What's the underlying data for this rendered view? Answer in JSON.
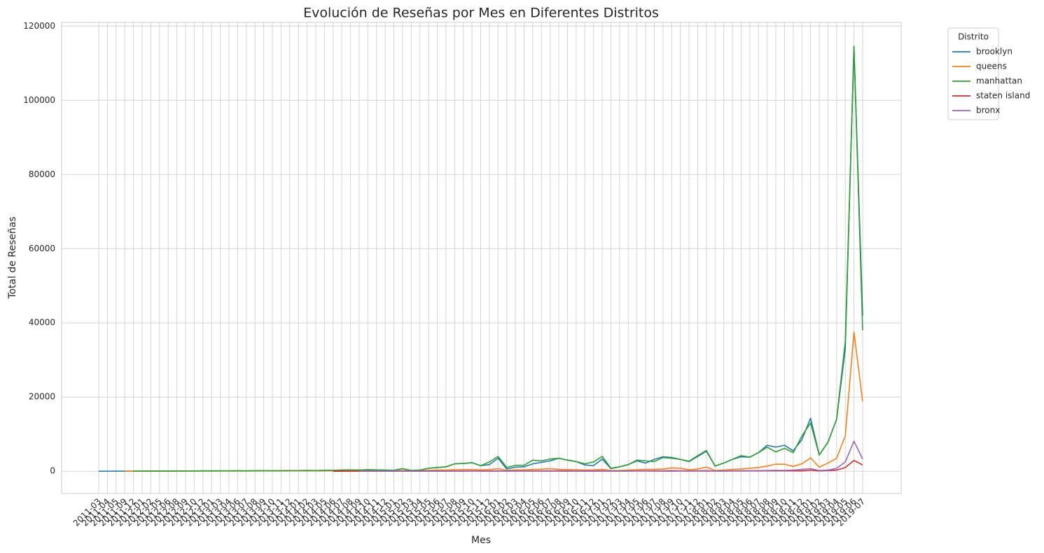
{
  "chart_data": {
    "type": "line",
    "title": "Evolución de Reseñas por Mes en Diferentes Distritos",
    "x_label": "Mes",
    "y_label": "Total de Reseñas",
    "legend_title": "Distrito",
    "legend_position": "outside upper right",
    "grid": true,
    "categories": [
      "2011-03",
      "2011-04",
      "2011-05",
      "2011-09",
      "2011-12",
      "2012-01",
      "2012-02",
      "2012-05",
      "2012-06",
      "2012-08",
      "2012-09",
      "2012-10",
      "2012-12",
      "2013-01",
      "2013-03",
      "2013-04",
      "2013-06",
      "2013-07",
      "2013-08",
      "2013-09",
      "2013-10",
      "2013-11",
      "2013-12",
      "2014-01",
      "2014-02",
      "2014-03",
      "2014-05",
      "2014-06",
      "2014-07",
      "2014-08",
      "2014-09",
      "2014-10",
      "2014-11",
      "2014-12",
      "2015-01",
      "2015-02",
      "2015-03",
      "2015-04",
      "2015-05",
      "2015-06",
      "2015-07",
      "2015-08",
      "2015-09",
      "2015-10",
      "2015-11",
      "2015-12",
      "2016-01",
      "2016-02",
      "2016-03",
      "2016-04",
      "2016-05",
      "2016-06",
      "2016-07",
      "2016-08",
      "2016-09",
      "2016-10",
      "2016-11",
      "2016-12",
      "2017-01",
      "2017-02",
      "2017-03",
      "2017-04",
      "2017-05",
      "2017-06",
      "2017-07",
      "2017-08",
      "2017-09",
      "2017-10",
      "2017-11",
      "2017-12",
      "2018-01",
      "2018-02",
      "2018-03",
      "2018-04",
      "2018-05",
      "2018-06",
      "2018-07",
      "2018-08",
      "2018-09",
      "2018-10",
      "2018-11",
      "2018-12",
      "2019-01",
      "2019-02",
      "2019-03",
      "2019-04",
      "2019-05",
      "2019-06",
      "2019-07"
    ],
    "ylim": [
      -6000,
      121000
    ],
    "yticks": [
      0,
      20000,
      40000,
      60000,
      80000,
      100000,
      120000
    ],
    "series": [
      {
        "name": "brooklyn",
        "color": "#1f77b4",
        "values": [
          10,
          15,
          20,
          20,
          30,
          40,
          50,
          60,
          60,
          70,
          80,
          80,
          90,
          100,
          90,
          110,
          120,
          100,
          130,
          140,
          120,
          150,
          160,
          180,
          200,
          170,
          220,
          250,
          300,
          350,
          300,
          400,
          350,
          300,
          250,
          700,
          200,
          300,
          800,
          1000,
          1200,
          2000,
          2100,
          2300,
          1500,
          1800,
          3500,
          600,
          1100,
          1200,
          2000,
          2400,
          2800,
          3500,
          3000,
          2600,
          1700,
          1500,
          3300,
          700,
          1200,
          1800,
          2800,
          2200,
          3200,
          3900,
          3700,
          3200,
          2600,
          4000,
          5400,
          1400,
          2200,
          3200,
          3900,
          3800,
          5000,
          7000,
          6500,
          7000,
          5500,
          8500,
          14300,
          4400,
          7800,
          14000,
          33000,
          114500,
          42000
        ]
      },
      {
        "name": "queens",
        "color": "#ff7f0e",
        "values": [
          null,
          null,
          null,
          20,
          20,
          30,
          30,
          40,
          40,
          50,
          50,
          60,
          60,
          60,
          70,
          70,
          80,
          80,
          90,
          90,
          100,
          100,
          110,
          110,
          120,
          120,
          130,
          140,
          150,
          160,
          150,
          170,
          180,
          160,
          150,
          200,
          150,
          180,
          250,
          300,
          300,
          400,
          450,
          450,
          350,
          450,
          700,
          250,
          350,
          350,
          500,
          550,
          700,
          500,
          450,
          400,
          300,
          350,
          500,
          200,
          200,
          300,
          400,
          500,
          500,
          600,
          900,
          800,
          400,
          600,
          1100,
          200,
          300,
          500,
          600,
          800,
          1000,
          1400,
          1900,
          1900,
          1300,
          2000,
          3600,
          1100,
          2200,
          3500,
          9500,
          37500,
          18800
        ]
      },
      {
        "name": "manhattan",
        "color": "#2ca02c",
        "values": [
          null,
          null,
          null,
          null,
          30,
          40,
          50,
          60,
          60,
          70,
          80,
          80,
          90,
          100,
          90,
          110,
          120,
          100,
          130,
          140,
          120,
          150,
          160,
          180,
          200,
          170,
          220,
          250,
          300,
          350,
          300,
          400,
          350,
          300,
          250,
          700,
          200,
          300,
          800,
          1000,
          1200,
          2000,
          2100,
          2300,
          1500,
          2500,
          4000,
          1000,
          1600,
          1600,
          3000,
          2800,
          3300,
          3500,
          3000,
          2600,
          2000,
          2500,
          4000,
          800,
          1200,
          1800,
          3000,
          2800,
          2600,
          3700,
          3500,
          3200,
          2700,
          4200,
          5600,
          1400,
          2200,
          3200,
          4200,
          3800,
          5000,
          6500,
          5200,
          6200,
          5000,
          9500,
          13000,
          4400,
          7800,
          14000,
          35000,
          114500,
          38000
        ]
      },
      {
        "name": "staten island",
        "color": "#d62728",
        "values": [
          null,
          null,
          null,
          null,
          null,
          null,
          null,
          null,
          null,
          null,
          null,
          null,
          null,
          null,
          null,
          null,
          null,
          null,
          null,
          null,
          null,
          null,
          null,
          null,
          null,
          null,
          null,
          10,
          10,
          20,
          10,
          20,
          20,
          10,
          20,
          20,
          30,
          20,
          30,
          30,
          30,
          40,
          30,
          40,
          50,
          30,
          40,
          40,
          50,
          60,
          50,
          50,
          40,
          40,
          30,
          50,
          20,
          30,
          40,
          50,
          50,
          60,
          70,
          70,
          60,
          50,
          60,
          80,
          60,
          70,
          100,
          40,
          60,
          70,
          80,
          90,
          100,
          120,
          130,
          110,
          150,
          100,
          300,
          100,
          200,
          300,
          1000,
          2900,
          1700
        ]
      },
      {
        "name": "bronx",
        "color": "#9467bd",
        "values": [
          null,
          null,
          null,
          null,
          null,
          null,
          null,
          null,
          null,
          null,
          null,
          null,
          null,
          null,
          null,
          null,
          null,
          null,
          null,
          null,
          null,
          null,
          null,
          null,
          null,
          null,
          null,
          null,
          null,
          null,
          10,
          20,
          20,
          30,
          20,
          40,
          30,
          40,
          50,
          60,
          70,
          80,
          90,
          100,
          80,
          100,
          150,
          60,
          80,
          90,
          120,
          130,
          150,
          140,
          120,
          100,
          90,
          100,
          140,
          50,
          70,
          90,
          110,
          120,
          130,
          150,
          160,
          150,
          120,
          140,
          200,
          80,
          100,
          120,
          140,
          150,
          180,
          200,
          250,
          220,
          300,
          500,
          700,
          200,
          300,
          800,
          2500,
          8100,
          3300
        ]
      }
    ]
  }
}
